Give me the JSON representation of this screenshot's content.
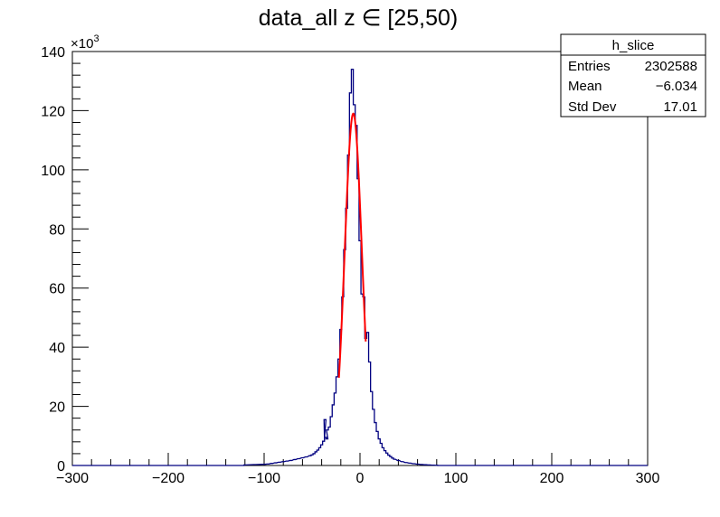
{
  "chart_data": {
    "type": "histogram",
    "title": "data_all z ∈ [25,50)",
    "xlabel": "",
    "ylabel": "",
    "y_multiplier_label": "×10",
    "y_multiplier_exponent": "3",
    "xlim": [
      -300,
      300
    ],
    "ylim": [
      0,
      140000
    ],
    "x_ticks": [
      -300,
      -200,
      -100,
      0,
      100,
      200,
      300
    ],
    "x_tick_labels": [
      "−300",
      "−200",
      "−100",
      "0",
      "100",
      "200",
      "300"
    ],
    "y_ticks": [
      0,
      20000,
      40000,
      60000,
      80000,
      100000,
      120000,
      140000
    ],
    "y_tick_labels": [
      "0",
      "20",
      "40",
      "60",
      "80",
      "100",
      "120",
      "140"
    ],
    "grid": false,
    "histogram": {
      "name": "h_slice",
      "color": "#000080",
      "bin_width": 2,
      "bins": [
        [
          -120,
          200
        ],
        [
          -110,
          300
        ],
        [
          -100,
          400
        ],
        [
          -96,
          500
        ],
        [
          -92,
          700
        ],
        [
          -88,
          900
        ],
        [
          -84,
          1100
        ],
        [
          -80,
          1300
        ],
        [
          -76,
          1500
        ],
        [
          -72,
          1700
        ],
        [
          -68,
          2000
        ],
        [
          -64,
          2300
        ],
        [
          -60,
          2600
        ],
        [
          -56,
          2900
        ],
        [
          -52,
          3300
        ],
        [
          -50,
          3600
        ],
        [
          -48,
          4000
        ],
        [
          -46,
          4600
        ],
        [
          -44,
          5200
        ],
        [
          -42,
          6000
        ],
        [
          -40,
          7000
        ],
        [
          -38,
          8200
        ],
        [
          -36,
          9500
        ],
        [
          -34,
          12000
        ],
        [
          -36.5,
          15500
        ],
        [
          -34.5,
          9000
        ],
        [
          -32,
          13000
        ],
        [
          -30,
          16500
        ],
        [
          -28,
          20500
        ],
        [
          -26,
          24500
        ],
        [
          -24,
          30000
        ],
        [
          -22,
          36000
        ],
        [
          -20,
          46000
        ],
        [
          -18,
          57000
        ],
        [
          -16,
          73000
        ],
        [
          -14,
          87000
        ],
        [
          -12,
          105000
        ],
        [
          -10,
          126000
        ],
        [
          -8,
          134000
        ],
        [
          -6,
          122000
        ],
        [
          -4,
          115000
        ],
        [
          -2,
          97000
        ],
        [
          0,
          76000
        ],
        [
          2,
          58000
        ],
        [
          4,
          57000
        ],
        [
          6,
          43000
        ],
        [
          8,
          45000
        ],
        [
          10,
          35000
        ],
        [
          12,
          25000
        ],
        [
          14,
          19000
        ],
        [
          16,
          14500
        ],
        [
          18,
          11500
        ],
        [
          20,
          9000
        ],
        [
          22,
          7500
        ],
        [
          24,
          6000
        ],
        [
          26,
          5000
        ],
        [
          28,
          4200
        ],
        [
          30,
          3500
        ],
        [
          32,
          3000
        ],
        [
          34,
          2500
        ],
        [
          36,
          2100
        ],
        [
          40,
          1700
        ],
        [
          44,
          1300
        ],
        [
          48,
          1000
        ],
        [
          52,
          800
        ],
        [
          56,
          600
        ],
        [
          60,
          450
        ],
        [
          64,
          350
        ],
        [
          68,
          250
        ],
        [
          72,
          180
        ],
        [
          76,
          120
        ],
        [
          80,
          80
        ]
      ]
    },
    "fit": {
      "color": "#ff0000",
      "mean": -7,
      "sigma": 9,
      "amplitude": 119000,
      "range": [
        -22,
        6
      ]
    },
    "legend_placement": "top-right",
    "stats": {
      "title": "h_slice",
      "rows": [
        {
          "label": "Entries",
          "value": "2302588"
        },
        {
          "label": "Mean",
          "value": "−6.034"
        },
        {
          "label": "Std Dev",
          "value": "17.01"
        }
      ]
    }
  }
}
